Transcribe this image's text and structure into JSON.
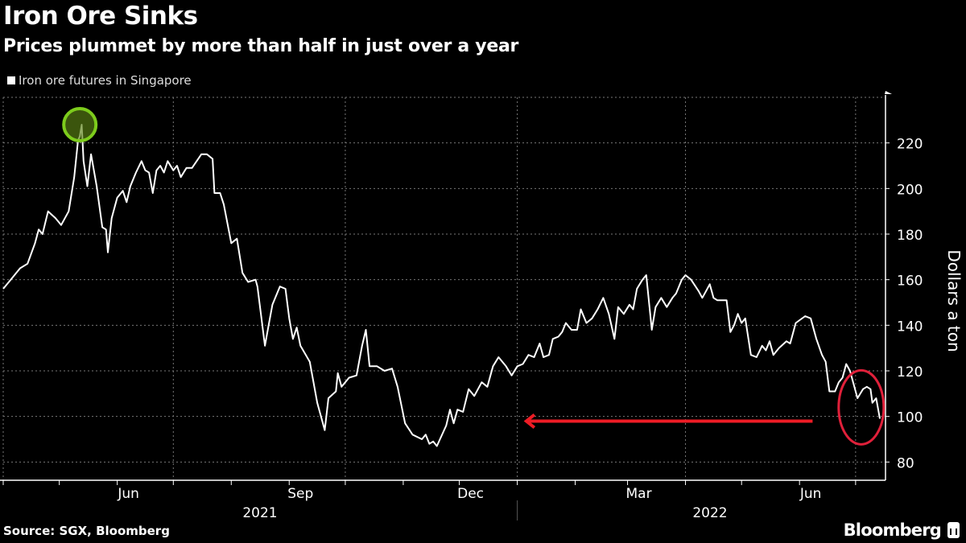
{
  "header": {
    "title": "Iron Ore Sinks",
    "subtitle": "Prices plummet by more than half in just over a year"
  },
  "footer": {
    "source": "Source: SGX, Bloomberg",
    "logo": "Bloomberg"
  },
  "colors": {
    "background": "#000000",
    "line": "#ffffff",
    "peak_highlight": "#7dcc1c",
    "recent_highlight": "#e0203a",
    "arrow": "#ee1c25"
  },
  "chart_data": {
    "type": "line",
    "title": "Iron Ore Sinks",
    "subtitle": "Prices plummet by more than half in just over a year",
    "legend": {
      "placement": "top-left",
      "entries": [
        "Iron ore futures in Singapore"
      ]
    },
    "ylabel": "Dollars a ton",
    "y_axis_side": "right",
    "ylim": [
      72,
      240
    ],
    "yticks": [
      80,
      100,
      120,
      140,
      160,
      180,
      200,
      220
    ],
    "xlim": [
      "2021-04-01",
      "2022-07-17"
    ],
    "xtick_labels": [
      {
        "date": "2021-06-01",
        "label": "Jun"
      },
      {
        "date": "2021-09-01",
        "label": "Sep"
      },
      {
        "date": "2021-12-01",
        "label": "Dec"
      },
      {
        "date": "2022-03-01",
        "label": "Mar"
      },
      {
        "date": "2022-06-01",
        "label": "Jun"
      }
    ],
    "year_labels": [
      {
        "label": "2021"
      },
      {
        "label": "2022"
      }
    ],
    "grid": true,
    "annotations": [
      {
        "type": "circle",
        "date": "2021-05-12",
        "value": 228,
        "color": "#7dcc1c"
      },
      {
        "type": "ellipse",
        "from": "2022-06-24",
        "to": "2022-07-14",
        "color": "#e0203a"
      },
      {
        "type": "arrow",
        "from": "2022-06-08",
        "to": "2022-01-05",
        "value": 99,
        "color": "#ee1c25"
      }
    ],
    "series": [
      {
        "values": [
          [
            "2021-04-01",
            156
          ],
          [
            "2021-04-05",
            160
          ],
          [
            "2021-04-10",
            165
          ],
          [
            "2021-04-14",
            167
          ],
          [
            "2021-04-18",
            176
          ],
          [
            "2021-04-20",
            182
          ],
          [
            "2021-04-22",
            180
          ],
          [
            "2021-04-25",
            190
          ],
          [
            "2021-04-29",
            187
          ],
          [
            "2021-05-02",
            184
          ],
          [
            "2021-05-06",
            190
          ],
          [
            "2021-05-09",
            205
          ],
          [
            "2021-05-11",
            221
          ],
          [
            "2021-05-12",
            223
          ],
          [
            "2021-05-13",
            228
          ],
          [
            "2021-05-14",
            212
          ],
          [
            "2021-05-16",
            201
          ],
          [
            "2021-05-18",
            215
          ],
          [
            "2021-05-21",
            201
          ],
          [
            "2021-05-24",
            183
          ],
          [
            "2021-05-26",
            182
          ],
          [
            "2021-05-27",
            172
          ],
          [
            "2021-05-29",
            187
          ],
          [
            "2021-06-01",
            196
          ],
          [
            "2021-06-04",
            199
          ],
          [
            "2021-06-06",
            194
          ],
          [
            "2021-06-08",
            201
          ],
          [
            "2021-06-11",
            207
          ],
          [
            "2021-06-14",
            212
          ],
          [
            "2021-06-16",
            208
          ],
          [
            "2021-06-18",
            207
          ],
          [
            "2021-06-20",
            198
          ],
          [
            "2021-06-22",
            208
          ],
          [
            "2021-06-24",
            210
          ],
          [
            "2021-06-26",
            207
          ],
          [
            "2021-06-28",
            212
          ],
          [
            "2021-07-01",
            208
          ],
          [
            "2021-07-03",
            210
          ],
          [
            "2021-07-05",
            205
          ],
          [
            "2021-07-08",
            209
          ],
          [
            "2021-07-11",
            209
          ],
          [
            "2021-07-16",
            215
          ],
          [
            "2021-07-19",
            215
          ],
          [
            "2021-07-22",
            213
          ],
          [
            "2021-07-23",
            198
          ],
          [
            "2021-07-26",
            198
          ],
          [
            "2021-07-28",
            193
          ],
          [
            "2021-08-01",
            176
          ],
          [
            "2021-08-04",
            178
          ],
          [
            "2021-08-07",
            163
          ],
          [
            "2021-08-10",
            159
          ],
          [
            "2021-08-14",
            160
          ],
          [
            "2021-08-15",
            157
          ],
          [
            "2021-08-19",
            131
          ],
          [
            "2021-08-21",
            140
          ],
          [
            "2021-08-23",
            149
          ],
          [
            "2021-08-27",
            157
          ],
          [
            "2021-08-30",
            156
          ],
          [
            "2021-09-01",
            143
          ],
          [
            "2021-09-03",
            134
          ],
          [
            "2021-09-05",
            139
          ],
          [
            "2021-09-07",
            131
          ],
          [
            "2021-09-12",
            124
          ],
          [
            "2021-09-16",
            106
          ],
          [
            "2021-09-20",
            94
          ],
          [
            "2021-09-22",
            108
          ],
          [
            "2021-09-26",
            111
          ],
          [
            "2021-09-27",
            119
          ],
          [
            "2021-09-29",
            113
          ],
          [
            "2021-10-03",
            117
          ],
          [
            "2021-10-07",
            118
          ],
          [
            "2021-10-10",
            131
          ],
          [
            "2021-10-12",
            138
          ],
          [
            "2021-10-14",
            122
          ],
          [
            "2021-10-18",
            122
          ],
          [
            "2021-10-22",
            120
          ],
          [
            "2021-10-26",
            121
          ],
          [
            "2021-10-29",
            113
          ],
          [
            "2021-11-02",
            97
          ],
          [
            "2021-11-06",
            92
          ],
          [
            "2021-11-11",
            90
          ],
          [
            "2021-11-13",
            92
          ],
          [
            "2021-11-15",
            88
          ],
          [
            "2021-11-17",
            89
          ],
          [
            "2021-11-19",
            87
          ],
          [
            "2021-11-24",
            96
          ],
          [
            "2021-11-26",
            103
          ],
          [
            "2021-11-28",
            97
          ],
          [
            "2021-11-30",
            103
          ],
          [
            "2021-12-03",
            102
          ],
          [
            "2021-12-06",
            112
          ],
          [
            "2021-12-09",
            109
          ],
          [
            "2021-12-13",
            115
          ],
          [
            "2021-12-16",
            113
          ],
          [
            "2021-12-19",
            122
          ],
          [
            "2021-12-22",
            126
          ],
          [
            "2021-12-26",
            122
          ],
          [
            "2021-12-29",
            118
          ],
          [
            "2022-01-01",
            122
          ],
          [
            "2022-01-04",
            123
          ],
          [
            "2022-01-07",
            127
          ],
          [
            "2022-01-10",
            126
          ],
          [
            "2022-01-13",
            132
          ],
          [
            "2022-01-15",
            126
          ],
          [
            "2022-01-18",
            127
          ],
          [
            "2022-01-20",
            134
          ],
          [
            "2022-01-23",
            135
          ],
          [
            "2022-01-25",
            137
          ],
          [
            "2022-01-27",
            141
          ],
          [
            "2022-01-30",
            138
          ],
          [
            "2022-02-02",
            138
          ],
          [
            "2022-02-04",
            147
          ],
          [
            "2022-02-07",
            141
          ],
          [
            "2022-02-10",
            143
          ],
          [
            "2022-02-13",
            147
          ],
          [
            "2022-02-16",
            152
          ],
          [
            "2022-02-19",
            145
          ],
          [
            "2022-02-22",
            134
          ],
          [
            "2022-02-24",
            148
          ],
          [
            "2022-02-27",
            145
          ],
          [
            "2022-03-02",
            149
          ],
          [
            "2022-03-04",
            147
          ],
          [
            "2022-03-06",
            156
          ],
          [
            "2022-03-09",
            160
          ],
          [
            "2022-03-11",
            162
          ],
          [
            "2022-03-14",
            138
          ],
          [
            "2022-03-16",
            148
          ],
          [
            "2022-03-19",
            152
          ],
          [
            "2022-03-22",
            148
          ],
          [
            "2022-03-25",
            152
          ],
          [
            "2022-03-27",
            154
          ],
          [
            "2022-03-30",
            160
          ],
          [
            "2022-04-01",
            162
          ],
          [
            "2022-04-04",
            160
          ],
          [
            "2022-04-08",
            155
          ],
          [
            "2022-04-10",
            152
          ],
          [
            "2022-04-12",
            155
          ],
          [
            "2022-04-14",
            158
          ],
          [
            "2022-04-16",
            152
          ],
          [
            "2022-04-18",
            151
          ],
          [
            "2022-04-23",
            151
          ],
          [
            "2022-04-25",
            137
          ],
          [
            "2022-04-27",
            140
          ],
          [
            "2022-04-29",
            145
          ],
          [
            "2022-05-01",
            141
          ],
          [
            "2022-05-03",
            143
          ],
          [
            "2022-05-06",
            127
          ],
          [
            "2022-05-09",
            126
          ],
          [
            "2022-05-12",
            131
          ],
          [
            "2022-05-14",
            129
          ],
          [
            "2022-05-16",
            133
          ],
          [
            "2022-05-18",
            127
          ],
          [
            "2022-05-21",
            130
          ],
          [
            "2022-05-25",
            133
          ],
          [
            "2022-05-27",
            132
          ],
          [
            "2022-05-30",
            141
          ],
          [
            "2022-06-04",
            144
          ],
          [
            "2022-06-07",
            143
          ],
          [
            "2022-06-10",
            134
          ],
          [
            "2022-06-13",
            127
          ],
          [
            "2022-06-15",
            124
          ],
          [
            "2022-06-17",
            111
          ],
          [
            "2022-06-20",
            111
          ],
          [
            "2022-06-22",
            115
          ],
          [
            "2022-06-24",
            117
          ],
          [
            "2022-06-26",
            123
          ],
          [
            "2022-06-28",
            120
          ],
          [
            "2022-07-02",
            108
          ],
          [
            "2022-07-05",
            112
          ],
          [
            "2022-07-07",
            113
          ],
          [
            "2022-07-09",
            112
          ],
          [
            "2022-07-10",
            106
          ],
          [
            "2022-07-12",
            108
          ],
          [
            "2022-07-14",
            99
          ]
        ]
      }
    ]
  }
}
